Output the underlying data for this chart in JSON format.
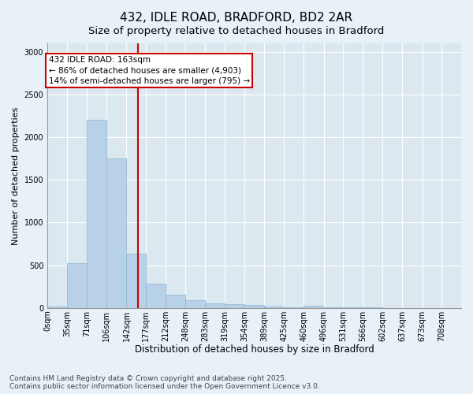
{
  "title": "432, IDLE ROAD, BRADFORD, BD2 2AR",
  "subtitle": "Size of property relative to detached houses in Bradford",
  "xlabel": "Distribution of detached houses by size in Bradford",
  "ylabel": "Number of detached properties",
  "bar_color": "#b8d0e8",
  "bar_edge_color": "#8ab4d4",
  "plot_bg_color": "#dce8f0",
  "fig_bg_color": "#e8f0f8",
  "grid_color": "#ffffff",
  "vline_x": 163,
  "vline_color": "#cc0000",
  "annotation_text": "432 IDLE ROAD: 163sqm\n← 86% of detached houses are smaller (4,903)\n14% of semi-detached houses are larger (795) →",
  "annotation_box_edgecolor": "#cc0000",
  "bin_edges": [
    0,
    35,
    71,
    106,
    142,
    177,
    212,
    248,
    283,
    319,
    354,
    389,
    425,
    460,
    496,
    531,
    566,
    602,
    637,
    673,
    708
  ],
  "bin_labels": [
    "0sqm",
    "35sqm",
    "71sqm",
    "106sqm",
    "142sqm",
    "177sqm",
    "212sqm",
    "248sqm",
    "283sqm",
    "319sqm",
    "354sqm",
    "389sqm",
    "425sqm",
    "460sqm",
    "496sqm",
    "531sqm",
    "566sqm",
    "602sqm",
    "637sqm",
    "673sqm",
    "708sqm"
  ],
  "bar_heights": [
    20,
    520,
    2200,
    1750,
    630,
    280,
    155,
    90,
    55,
    45,
    35,
    15,
    5,
    25,
    2,
    5,
    5,
    0,
    0,
    0
  ],
  "ylim": [
    0,
    3100
  ],
  "yticks": [
    0,
    500,
    1000,
    1500,
    2000,
    2500,
    3000
  ],
  "footnote": "Contains HM Land Registry data © Crown copyright and database right 2025.\nContains public sector information licensed under the Open Government Licence v3.0.",
  "title_fontsize": 11,
  "subtitle_fontsize": 9.5,
  "xlabel_fontsize": 8.5,
  "ylabel_fontsize": 8,
  "tick_fontsize": 7,
  "footnote_fontsize": 6.5,
  "annotation_fontsize": 7.5
}
